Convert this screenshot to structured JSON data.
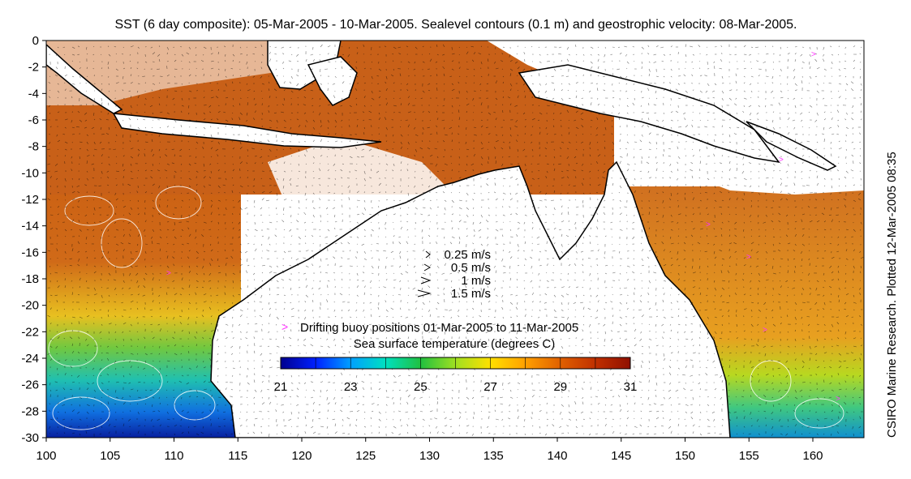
{
  "chart_data": {
    "type": "heatmap",
    "title": "SST (6 day composite): 05-Mar-2005 - 10-Mar-2005. Sealevel contours (0.1 m) and geostrophic velocity: 08-Mar-2005.",
    "side_credit": "CSIRO Marine Research. Plotted 12-Mar-2005 08:35",
    "x_ticks": [
      100,
      105,
      110,
      115,
      120,
      125,
      130,
      135,
      140,
      145,
      150,
      155,
      160
    ],
    "y_ticks": [
      0,
      -2,
      -4,
      -6,
      -8,
      -10,
      -12,
      -14,
      -16,
      -18,
      -20,
      -22,
      -24,
      -26,
      -28,
      -30
    ],
    "x_labels": [
      "100",
      "105",
      "110",
      "115",
      "120",
      "125",
      "130",
      "135",
      "140",
      "145",
      "150",
      "155",
      "160"
    ],
    "y_labels": [
      "0",
      "-2",
      "-4",
      "-6",
      "-8",
      "-10",
      "-12",
      "-14",
      "-16",
      "-18",
      "-20",
      "-22",
      "-24",
      "-26",
      "-28",
      "-30"
    ],
    "xlim": [
      100,
      164
    ],
    "ylim": [
      -30,
      0
    ],
    "velocity_legend": [
      {
        "label": "0.25 m/s",
        "speed": 0.25
      },
      {
        "label": "0.5 m/s",
        "speed": 0.5
      },
      {
        "label": "1 m/s",
        "speed": 1
      },
      {
        "label": "1.5 m/s",
        "speed": 1.5
      }
    ],
    "buoy_legend": {
      "label": "Drifting buoy positions 01-Mar-2005 to 11-Mar-2005",
      "color": "#ff33ff"
    },
    "colorbar": {
      "label": "Sea surface temperature (degrees C)",
      "range": [
        21,
        31
      ],
      "ticks": [
        21,
        23,
        25,
        27,
        29,
        31
      ],
      "tick_labels": [
        "21",
        "23",
        "25",
        "27",
        "29",
        "31"
      ],
      "colors": [
        "#00008f",
        "#0020ff",
        "#00a0ff",
        "#00e0c0",
        "#20c040",
        "#a0e020",
        "#ffe000",
        "#ffa000",
        "#e06000",
        "#c03000",
        "#901000"
      ]
    },
    "land_color": "#ffffff",
    "coast_color": "#000000",
    "contour_color": "#ffffff"
  }
}
